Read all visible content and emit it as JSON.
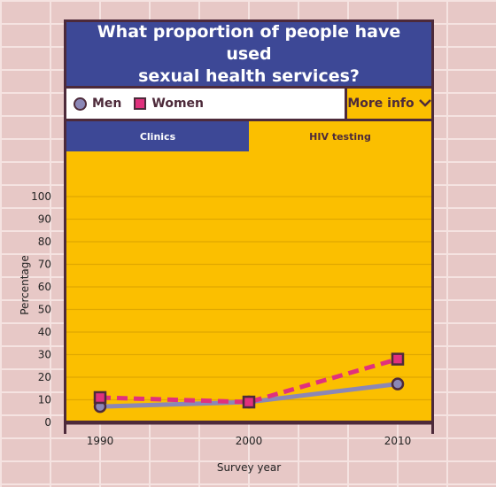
{
  "header": {
    "title_line1": "What proportion of people have used",
    "title_line2": "sexual health services?"
  },
  "legend": {
    "men": "Men",
    "women": "Women"
  },
  "more_info": {
    "label": "More info"
  },
  "tabs": [
    {
      "label": "Clinics",
      "active": false
    },
    {
      "label": "HIV testing",
      "active": true
    }
  ],
  "colors": {
    "panel": "#fbbf00",
    "header": "#3d4896",
    "men": "#8b87b6",
    "women": "#e0317d",
    "outline": "#4d2a3a"
  },
  "chart_data": {
    "type": "line",
    "x": [
      1990,
      2000,
      2010
    ],
    "series": [
      {
        "name": "Men",
        "values": [
          7,
          9,
          17
        ]
      },
      {
        "name": "Women",
        "values": [
          11,
          9,
          28
        ]
      }
    ],
    "xlabel": "Survey year",
    "ylabel": "Percentage",
    "ylim": [
      0,
      100
    ],
    "yticks": [
      0,
      10,
      20,
      30,
      40,
      50,
      60,
      70,
      80,
      90,
      100
    ],
    "grid": true
  }
}
